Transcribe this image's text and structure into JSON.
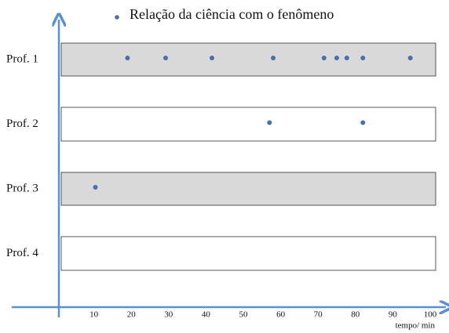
{
  "chart_data": {
    "type": "dot",
    "categories": [
      "Prof. 1",
      "Prof. 2",
      "Prof. 3",
      "Prof. 4"
    ],
    "series": [
      {
        "name": "Relação da ciência com o fenômeno",
        "color": "#4a6fa5",
        "values": [
          [
            19,
            29.2,
            41.6,
            58,
            71.6,
            75,
            77.7,
            82,
            94.7
          ],
          [
            57,
            82
          ],
          [
            10.4
          ],
          []
        ]
      }
    ],
    "xlabel": "tempo/ min",
    "xlim": [
      0,
      104
    ],
    "xticks": [
      10,
      20,
      30,
      40,
      50,
      60,
      70,
      80,
      90,
      100
    ]
  }
}
